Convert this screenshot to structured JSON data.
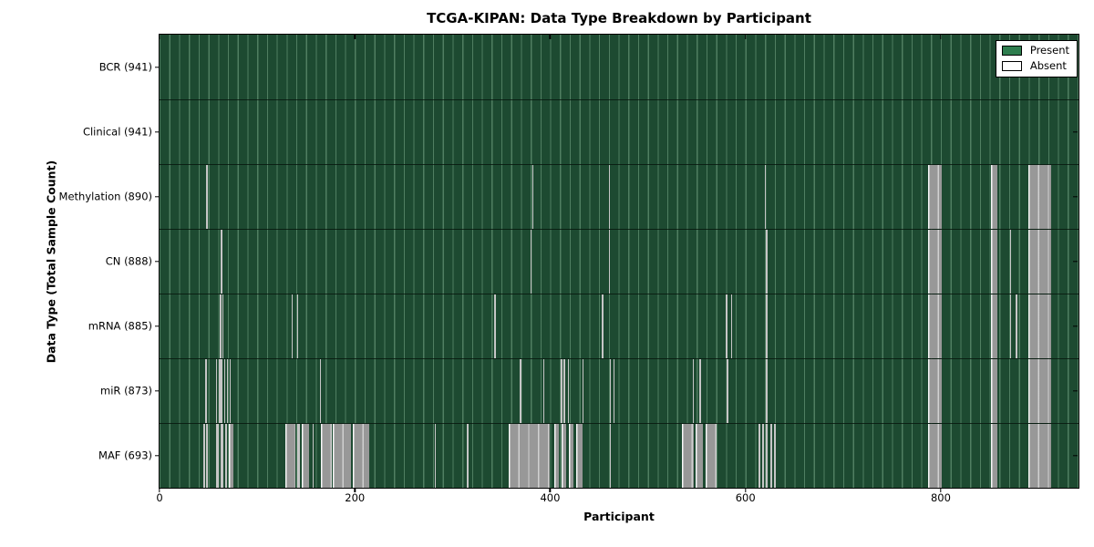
{
  "colors": {
    "present": "#1d4a31",
    "grid_line": "rgba(141,190,156,0.45)",
    "absent_wide": "#989898",
    "absent_narrow": "#c6c6c6",
    "legend_present": "#2e7d4e",
    "legend_absent": "#ffffff",
    "axis": "#000000",
    "background": "#ffffff"
  },
  "chart_data": {
    "type": "heatmap",
    "title": "TCGA-KIPAN: Data Type Breakdown by Participant",
    "xlabel": "Participant",
    "ylabel": "Data Type (Total Sample Count)",
    "x_range": [
      0,
      941
    ],
    "x_ticks": [
      0,
      200,
      400,
      600,
      800
    ],
    "grid": "vertical minor gridlines every ~10 participants",
    "legend_position": "upper right",
    "legend": [
      {
        "label": "Present",
        "color": "#2e7d4e"
      },
      {
        "label": "Absent",
        "color": "#ffffff"
      }
    ],
    "rows": [
      {
        "name": "BCR",
        "label": "BCR (941)",
        "total": 941,
        "absent_ranges": []
      },
      {
        "name": "Clinical",
        "label": "Clinical (941)",
        "total": 941,
        "absent_ranges": []
      },
      {
        "name": "Methylation",
        "label": "Methylation (890)",
        "total": 890,
        "absent_ranges": [
          [
            48,
            49
          ],
          [
            382,
            383
          ],
          [
            460,
            461
          ],
          [
            620,
            621
          ],
          [
            787,
            801
          ],
          [
            851,
            858
          ],
          [
            890,
            913
          ]
        ]
      },
      {
        "name": "CN",
        "label": "CN (888)",
        "total": 888,
        "absent_ranges": [
          [
            63,
            64
          ],
          [
            380,
            381
          ],
          [
            460,
            461
          ],
          [
            621,
            622
          ],
          [
            787,
            801
          ],
          [
            851,
            858
          ],
          [
            871,
            872
          ],
          [
            890,
            913
          ]
        ]
      },
      {
        "name": "mRNA",
        "label": "mRNA (885)",
        "total": 885,
        "absent_ranges": [
          [
            62,
            63
          ],
          [
            64,
            65
          ],
          [
            135,
            136
          ],
          [
            141,
            142
          ],
          [
            343,
            344
          ],
          [
            453,
            454
          ],
          [
            580,
            581
          ],
          [
            585,
            586
          ],
          [
            621,
            622
          ],
          [
            787,
            801
          ],
          [
            851,
            858
          ],
          [
            871,
            872
          ],
          [
            877,
            878
          ],
          [
            890,
            913
          ]
        ]
      },
      {
        "name": "miR",
        "label": "miR (873)",
        "total": 873,
        "absent_ranges": [
          [
            47,
            48
          ],
          [
            58,
            59
          ],
          [
            61,
            62
          ],
          [
            63,
            64
          ],
          [
            66,
            67
          ],
          [
            69,
            70
          ],
          [
            72,
            73
          ],
          [
            164,
            165
          ],
          [
            369,
            370
          ],
          [
            393,
            394
          ],
          [
            411,
            412
          ],
          [
            414,
            415
          ],
          [
            418,
            419
          ],
          [
            433,
            434
          ],
          [
            461,
            462
          ],
          [
            465,
            466
          ],
          [
            546,
            547
          ],
          [
            553,
            554
          ],
          [
            581,
            582
          ],
          [
            621,
            622
          ],
          [
            787,
            801
          ],
          [
            851,
            858
          ],
          [
            890,
            913
          ]
        ]
      },
      {
        "name": "MAF",
        "label": "MAF (693)",
        "total": 693,
        "absent_ranges": [
          [
            45,
            46
          ],
          [
            48,
            49
          ],
          [
            58,
            61
          ],
          [
            63,
            65
          ],
          [
            67,
            69
          ],
          [
            71,
            76
          ],
          [
            129,
            139
          ],
          [
            141,
            144
          ],
          [
            146,
            153
          ],
          [
            157,
            158
          ],
          [
            165,
            176
          ],
          [
            177,
            196
          ],
          [
            198,
            215
          ],
          [
            282,
            283
          ],
          [
            315,
            316
          ],
          [
            358,
            400
          ],
          [
            404,
            409
          ],
          [
            412,
            416
          ],
          [
            419,
            424
          ],
          [
            427,
            433
          ],
          [
            461,
            462
          ],
          [
            535,
            547
          ],
          [
            549,
            556
          ],
          [
            559,
            570
          ],
          [
            613,
            615
          ],
          [
            617,
            619
          ],
          [
            621,
            623
          ],
          [
            625,
            627
          ],
          [
            629,
            631
          ],
          [
            787,
            801
          ],
          [
            851,
            858
          ],
          [
            890,
            913
          ]
        ]
      }
    ]
  }
}
